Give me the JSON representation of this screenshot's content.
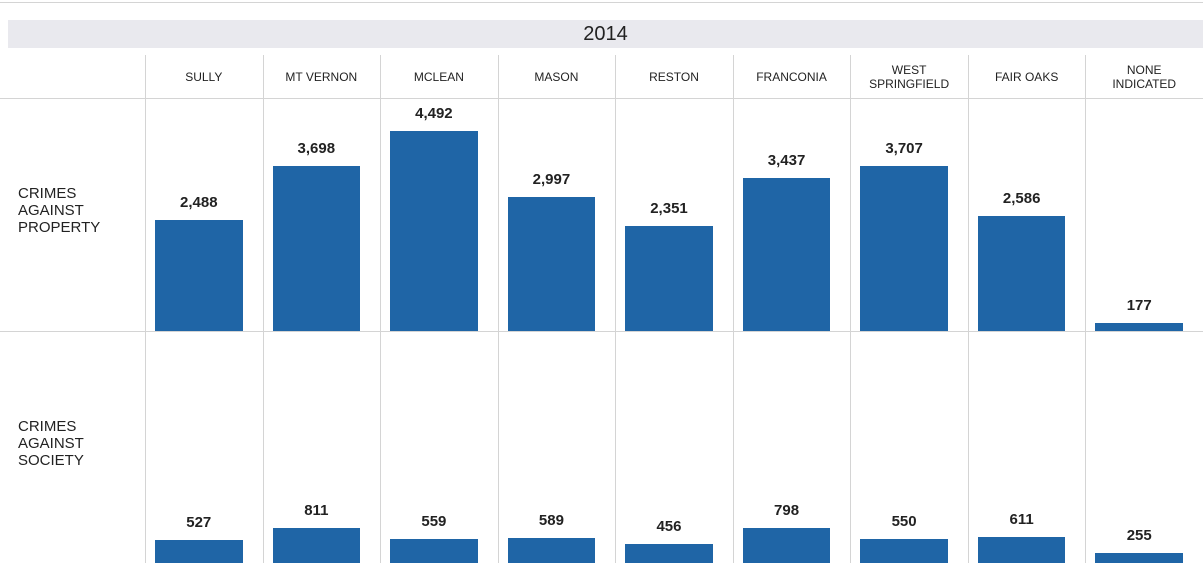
{
  "chart_data": {
    "type": "bar",
    "title": "2014",
    "categories": [
      "SULLY",
      "MT VERNON",
      "MCLEAN",
      "MASON",
      "RESTON",
      "FRANCONIA",
      "WEST SPRINGFIELD",
      "FAIR OAKS",
      "NONE INDICATED"
    ],
    "series": [
      {
        "name": "CRIMES AGAINST PROPERTY",
        "color": "#1f65a6",
        "values": [
          2488,
          3698,
          4492,
          2997,
          2351,
          3437,
          3707,
          2586,
          177
        ],
        "value_labels": [
          "2,488",
          "3,698",
          "4,492",
          "2,997",
          "2,351",
          "3,437",
          "3,707",
          "2,586",
          "177"
        ]
      },
      {
        "name": "CRIMES AGAINST SOCIETY",
        "color": "#1f65a6",
        "values": [
          527,
          811,
          559,
          589,
          456,
          798,
          550,
          611,
          255
        ],
        "value_labels": [
          "527",
          "811",
          "559",
          "589",
          "456",
          "798",
          "550",
          "611",
          "255"
        ]
      }
    ],
    "ylim": [
      0,
      5200
    ]
  }
}
